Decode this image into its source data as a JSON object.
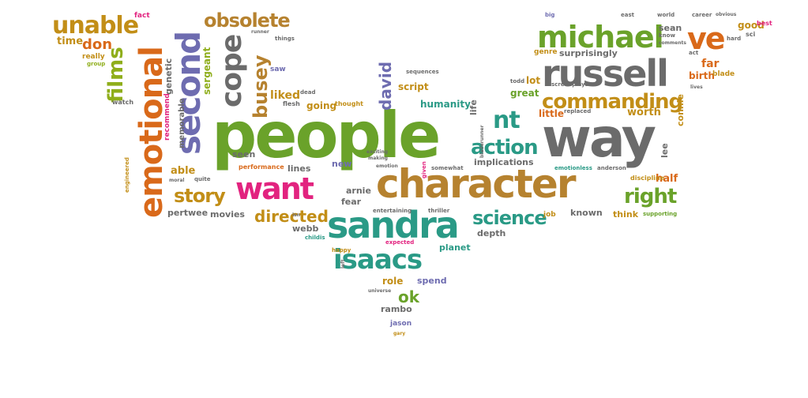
{
  "colors": {
    "green": "#6aa22a",
    "gray": "#6b6b6b",
    "orange": "#d9691a",
    "gold": "#c28e17",
    "pink": "#e2237f",
    "teal": "#2a9a86",
    "purple": "#6e6cb0",
    "lime": "#8fae1b",
    "brown": "#b6822f"
  },
  "words": [
    "people",
    "way",
    "character",
    "sandra",
    "emotional",
    "second",
    "russell",
    "michael",
    "want",
    "commanding",
    "isaacs",
    "unable",
    "cope",
    "obsolete",
    "ve",
    "action",
    "nt",
    "right",
    "science",
    "story",
    "films",
    "busey",
    "directed",
    "ok",
    "david",
    "don",
    "time",
    "fact",
    "sergeant",
    "genetic",
    "really",
    "group",
    "watch",
    "liked",
    "dead",
    "flesh",
    "saw",
    "things",
    "runner",
    "going",
    "thought",
    "memorable",
    "recommend",
    "script",
    "sequences",
    "humanity",
    "life",
    "lot",
    "great",
    "surprisingly",
    "genre",
    "todd",
    "far",
    "birth",
    "blade",
    "sean",
    "good",
    "best",
    "big",
    "east",
    "world",
    "career",
    "obvious",
    "know",
    "comments",
    "sci",
    "hard",
    "act",
    "lives",
    "little",
    "replaced",
    "worth",
    "connie",
    "screenplays",
    "lee",
    "half",
    "implications",
    "emotionless",
    "anderson",
    "discipline",
    "known",
    "think",
    "supporting",
    "job",
    "depth",
    "thriller",
    "entertaining",
    "given",
    "somewhat",
    "exciting",
    "making",
    "emotion",
    "new",
    "lines",
    "seen",
    "performance",
    "able",
    "quite",
    "moral",
    "engineered",
    "pertwee",
    "movies",
    "arnie",
    "fear",
    "webb",
    "childis",
    "expected",
    "planet",
    "happy",
    "left",
    "isn",
    "bladerunner",
    "role",
    "spend",
    "universe",
    "rambo",
    "jason",
    "gary"
  ]
}
